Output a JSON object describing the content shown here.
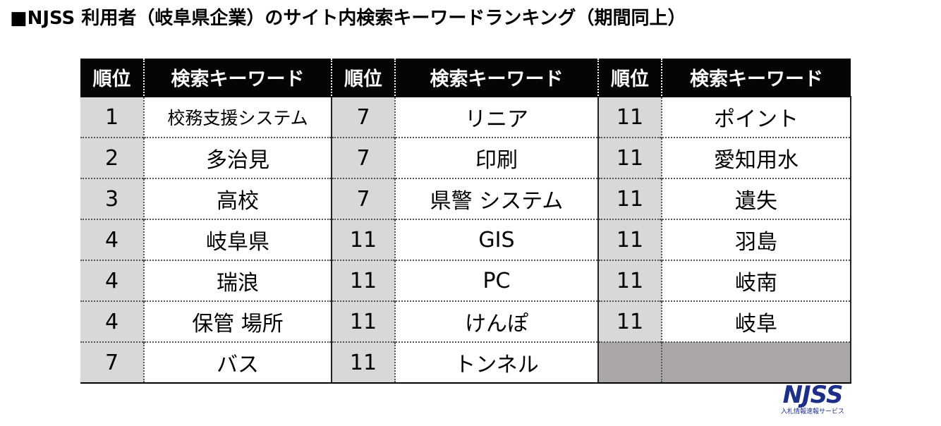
{
  "title": "■NJSS 利用者（岐阜県企業）のサイト内検索キーワードランキング（期間同上）",
  "headers": [
    "順位",
    "検索キーワード",
    "順位",
    "検索キーワード",
    "順位",
    "検索キーワード"
  ],
  "rows": [
    {
      "r1": "1",
      "k1": "校務支援システム",
      "r2": "7",
      "k2": "リニア",
      "r3": "11",
      "k3": "ポイント"
    },
    {
      "r1": "2",
      "k1": "多治見",
      "r2": "7",
      "k2": "印刷",
      "r3": "11",
      "k3": "愛知用水"
    },
    {
      "r1": "3",
      "k1": "高校",
      "r2": "7",
      "k2": "県警 システム",
      "r3": "11",
      "k3": "遺失"
    },
    {
      "r1": "4",
      "k1": "岐阜県",
      "r2": "11",
      "k2": "GIS",
      "r3": "11",
      "k3": "羽島"
    },
    {
      "r1": "4",
      "k1": "瑞浪",
      "r2": "11",
      "k2": "PC",
      "r3": "11",
      "k3": "岐南"
    },
    {
      "r1": "4",
      "k1": "保管 場所",
      "r2": "11",
      "k2": "けんぽ",
      "r3": "11",
      "k3": "岐阜"
    },
    {
      "r1": "7",
      "k1": "バス",
      "r2": "11",
      "k2": "トンネル",
      "r3": "",
      "k3": ""
    }
  ],
  "logo": {
    "mark": "NJSS",
    "sub": "入札情報速報サービス"
  }
}
